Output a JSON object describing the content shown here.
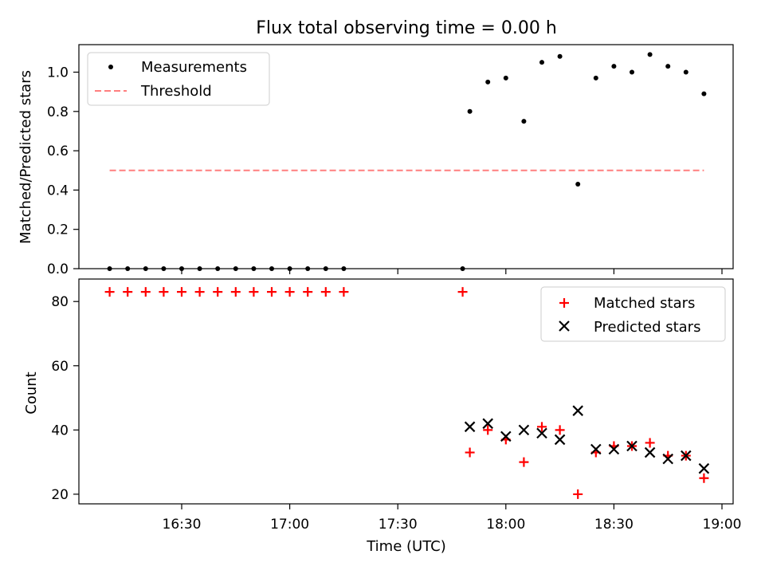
{
  "chart_data": {
    "title": "Flux total observing time = 0.00 h",
    "xlabel": "Time (UTC)",
    "x_tick_labels": [
      "16:30",
      "17:00",
      "17:30",
      "18:00",
      "18:30",
      "19:00"
    ],
    "panels": [
      {
        "type": "scatter",
        "ylabel": "Matched/Predicted stars",
        "ylim": [
          0,
          1.14
        ],
        "y_ticks": [
          "0.0",
          "0.2",
          "0.4",
          "0.6",
          "0.8",
          "1.0"
        ],
        "legend_position": "top-left",
        "series": [
          {
            "name": "Measurements",
            "marker": "dot",
            "color": "#000000",
            "x": [
              "16:10",
              "16:15",
              "16:20",
              "16:25",
              "16:30",
              "16:35",
              "16:40",
              "16:45",
              "16:50",
              "16:55",
              "17:00",
              "17:05",
              "17:10",
              "17:15",
              "17:48",
              "17:50",
              "17:55",
              "18:00",
              "18:05",
              "18:10",
              "18:15",
              "18:20",
              "18:25",
              "18:30",
              "18:35",
              "18:40",
              "18:45",
              "18:50",
              "18:55"
            ],
            "y": [
              0,
              0,
              0,
              0,
              0,
              0,
              0,
              0,
              0,
              0,
              0,
              0,
              0,
              0,
              0,
              0.8,
              0.95,
              0.97,
              0.75,
              1.05,
              1.08,
              0.43,
              0.97,
              1.03,
              1.0,
              1.09,
              1.03,
              1.0,
              0.89
            ]
          },
          {
            "name": "Threshold",
            "marker": "dashed-line",
            "color": "#ff7f7f",
            "x": [
              "16:10",
              "18:55"
            ],
            "y": [
              0.5,
              0.5
            ]
          }
        ]
      },
      {
        "type": "scatter",
        "ylabel": "Count",
        "ylim": [
          17,
          87
        ],
        "y_ticks": [
          "20",
          "40",
          "60",
          "80"
        ],
        "legend_position": "top-right",
        "series": [
          {
            "name": "Matched stars",
            "marker": "plus",
            "color": "#ff0000",
            "x": [
              "16:10",
              "16:15",
              "16:20",
              "16:25",
              "16:30",
              "16:35",
              "16:40",
              "16:45",
              "16:50",
              "16:55",
              "17:00",
              "17:05",
              "17:10",
              "17:15",
              "17:48",
              "17:50",
              "17:55",
              "18:00",
              "18:05",
              "18:10",
              "18:15",
              "18:20",
              "18:25",
              "18:30",
              "18:35",
              "18:40",
              "18:45",
              "18:50",
              "18:55"
            ],
            "y": [
              83,
              83,
              83,
              83,
              83,
              83,
              83,
              83,
              83,
              83,
              83,
              83,
              83,
              83,
              83,
              33,
              40,
              37,
              30,
              41,
              40,
              20,
              33,
              35,
              35,
              36,
              32,
              32,
              25
            ]
          },
          {
            "name": "Predicted stars",
            "marker": "x",
            "color": "#000000",
            "x": [
              "17:50",
              "17:55",
              "18:00",
              "18:05",
              "18:10",
              "18:15",
              "18:20",
              "18:25",
              "18:30",
              "18:35",
              "18:40",
              "18:45",
              "18:50",
              "18:55"
            ],
            "y": [
              41,
              42,
              38,
              40,
              39,
              37,
              46,
              34,
              34,
              35,
              33,
              31,
              32,
              28
            ]
          }
        ]
      }
    ]
  }
}
